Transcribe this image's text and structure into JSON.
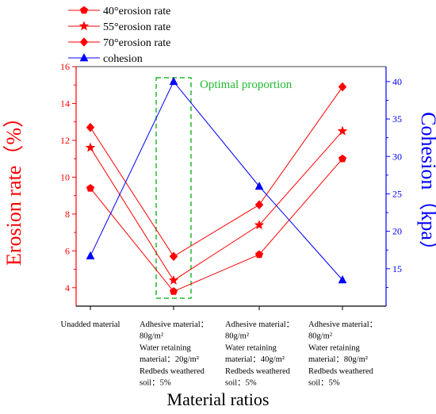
{
  "chart_data": {
    "type": "line",
    "xlabel": "Material ratios",
    "ylabel_left": "Erosion rate（%）",
    "ylabel_right": "Cohesion（kpa）",
    "ylim_left": [
      3,
      16
    ],
    "ylim_right": [
      10,
      42
    ],
    "yticks_left": [
      "4",
      "6",
      "8",
      "10",
      "12",
      "14",
      "16"
    ],
    "yticks_right": [
      "15",
      "20",
      "25",
      "30",
      "35",
      "40"
    ],
    "categories": [
      [
        "Unadded material"
      ],
      [
        "Adhesive material：",
        "80g/m²",
        "Water retaining",
        "material：20g/m²",
        "Redbeds weathered",
        "soil：5%"
      ],
      [
        "Adhesive material：",
        "80g/m²",
        "Water retaining",
        "material：40g/m²",
        "Redbeds weathered",
        "soil：5%"
      ],
      [
        "Adhesive material：",
        "80g/m²",
        "Water retaining",
        "material：80g/m²",
        "Redbeds weathered",
        "soil：5%"
      ]
    ],
    "series": [
      {
        "name": "40°erosion rate",
        "axis": "left",
        "marker": "pentagon",
        "color": "#ff0000",
        "values": [
          9.4,
          3.8,
          5.8,
          11.0
        ]
      },
      {
        "name": "55°erosion rate",
        "axis": "left",
        "marker": "star",
        "color": "#ff0000",
        "values": [
          11.6,
          4.4,
          7.4,
          12.5
        ]
      },
      {
        "name": "70°erosion rate",
        "axis": "left",
        "marker": "diamond",
        "color": "#ff0000",
        "values": [
          12.7,
          5.7,
          8.5,
          14.9
        ]
      },
      {
        "name": "cohesion",
        "axis": "right",
        "marker": "triangle",
        "color": "#0000ff",
        "values": [
          16.7,
          40.0,
          26.0,
          13.5
        ]
      }
    ],
    "annotation": {
      "text": "Optimal proportion",
      "color": "#22bb33",
      "highlight_category": 1
    },
    "grid": false,
    "legend": "top-left"
  }
}
